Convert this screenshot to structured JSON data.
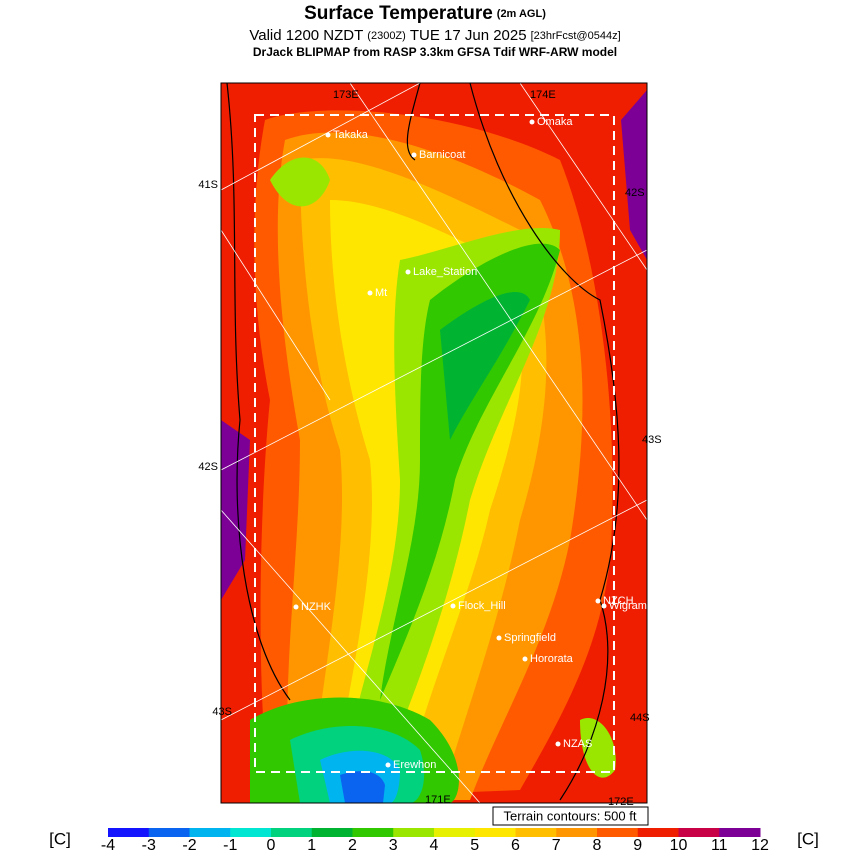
{
  "header": {
    "title": "Surface Temperature",
    "title_note": "(2m AGL)",
    "valid": "Valid 1200 NZDT",
    "utc": "(2300Z)",
    "date": "TUE 17 Jun 2025",
    "forecast": "[23hrFcst@0544z]",
    "model": "DrJack BLIPMAP from RASP 3.3km GFSA Tdif WRF-ARW model"
  },
  "grid_labels": [
    "173E",
    "174E",
    "41S",
    "42S",
    "42S",
    "43S",
    "43S",
    "44S",
    "171E",
    "172E"
  ],
  "places": [
    "Takaka",
    "Barnicoat",
    "Omaka",
    "Lake_Station",
    "Mt",
    "NZHK",
    "Flock_Hill",
    "Springfield",
    "Hororata",
    "NZCH",
    "Wigram",
    "NZAS",
    "Erewhon"
  ],
  "terrain_note": "Terrain contours: 500 ft",
  "colorbar": {
    "unit_left": "[C]",
    "unit_right": "[C]",
    "ticks": [
      -4,
      -3,
      -2,
      -1,
      0,
      1,
      2,
      3,
      4,
      5,
      6,
      7,
      8,
      9,
      10,
      11,
      12
    ],
    "colors": [
      "#1414ff",
      "#0a64f0",
      "#00b4f0",
      "#00e6d2",
      "#00d27d",
      "#00b432",
      "#32c800",
      "#9be600",
      "#e6f000",
      "#ffe600",
      "#ffbe00",
      "#ff9600",
      "#ff5a00",
      "#f01e00",
      "#c80046",
      "#7d0096"
    ]
  }
}
